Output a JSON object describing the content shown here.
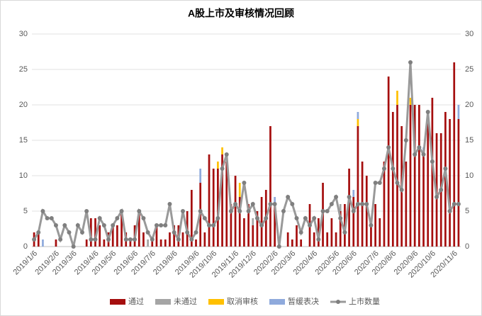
{
  "chart_data": {
    "type": "bar",
    "title": "A股上市及审核情况回顾",
    "categories": [
      "2019/1/6",
      null,
      null,
      null,
      null,
      "2019/2/6",
      null,
      null,
      null,
      "2019/3/6",
      null,
      null,
      null,
      null,
      "2019/4/6",
      null,
      null,
      null,
      "2019/5/6",
      null,
      null,
      null,
      null,
      "2019/6/6",
      null,
      null,
      null,
      "2019/7/6",
      null,
      null,
      null,
      null,
      "2019/8/6",
      null,
      null,
      null,
      null,
      "2019/9/6",
      null,
      null,
      null,
      "2019/10/6",
      null,
      null,
      null,
      null,
      "2019/11/6",
      null,
      null,
      null,
      "2019/12/6",
      null,
      null,
      null,
      null,
      "2020/2/6",
      null,
      null,
      null,
      "2020/3/6",
      null,
      null,
      null,
      null,
      "2020/4/6",
      null,
      null,
      null,
      null,
      "2020/5/6",
      null,
      null,
      null,
      "2020/6/6",
      null,
      null,
      null,
      null,
      "2020/7/6",
      null,
      null,
      null,
      "2020/8/6",
      null,
      null,
      null,
      null,
      "2020/9/6",
      null,
      null,
      null,
      "2020/10/6",
      null,
      null,
      null,
      null,
      "2020/11/6",
      null
    ],
    "series": [
      {
        "name": "通过",
        "color": "#a50e0e",
        "values": [
          2,
          2,
          0,
          0,
          0,
          1,
          0,
          0,
          0,
          0,
          0,
          0,
          1,
          4,
          4,
          3,
          1,
          2,
          3,
          3,
          5,
          2,
          1,
          3,
          5,
          2,
          0,
          1,
          3,
          1,
          1,
          2,
          3,
          3,
          2,
          5,
          8,
          1,
          9,
          2,
          13,
          11,
          11,
          13,
          12,
          6,
          10,
          7,
          4,
          6,
          3,
          5,
          7,
          8,
          17,
          6,
          0,
          0,
          2,
          1,
          3,
          1,
          0,
          6,
          2,
          4,
          9,
          2,
          4,
          2,
          5,
          6,
          11,
          7,
          17,
          12,
          10,
          3,
          6,
          4,
          12,
          24,
          19,
          20,
          17,
          12,
          20,
          20,
          20,
          13,
          19,
          21,
          16,
          16,
          19,
          18,
          26,
          18
        ]
      },
      {
        "name": "未通过",
        "color": "#a5a5a5",
        "values": [
          0,
          0,
          0,
          0,
          0,
          0,
          0,
          0,
          0,
          0,
          0,
          0,
          0,
          0,
          0,
          0,
          0,
          0,
          0,
          0,
          0,
          0,
          0,
          0,
          0,
          0,
          1,
          0,
          0,
          0,
          0,
          0,
          0,
          0,
          0,
          0,
          0,
          0,
          0,
          0,
          0,
          0,
          0,
          0,
          0,
          0,
          0,
          0,
          0,
          0,
          1,
          0,
          0,
          0,
          0,
          0,
          0,
          0,
          0,
          0,
          0,
          0,
          0,
          0,
          0,
          0,
          0,
          0,
          0,
          0,
          1,
          0,
          0,
          0,
          0,
          0,
          0,
          0,
          0,
          0,
          0,
          0,
          0,
          0,
          0,
          0,
          0,
          0,
          0,
          0,
          0,
          0,
          0,
          0,
          0,
          0,
          0,
          0
        ]
      },
      {
        "name": "取消审核",
        "color": "#ffc000",
        "values": [
          0,
          0,
          0,
          0,
          0,
          0,
          0,
          0,
          0,
          0,
          0,
          0,
          0,
          0,
          0,
          0,
          0,
          0,
          0,
          0,
          0,
          0,
          0,
          0,
          0,
          0,
          0,
          0,
          0,
          0,
          0,
          0,
          0,
          0,
          0,
          0,
          0,
          0,
          0,
          0,
          0,
          0,
          1,
          1,
          0,
          0,
          0,
          2,
          0,
          0,
          0,
          0,
          0,
          0,
          0,
          0,
          0,
          0,
          0,
          0,
          0,
          0,
          0,
          0,
          0,
          0,
          0,
          0,
          0,
          0,
          0,
          0,
          0,
          0,
          1,
          0,
          0,
          0,
          0,
          0,
          0,
          0,
          0,
          2,
          0,
          0,
          1,
          0,
          0,
          0,
          0,
          0,
          0,
          0,
          0,
          0,
          0,
          0
        ]
      },
      {
        "name": "暂缓表决",
        "color": "#8faadc",
        "values": [
          0,
          0,
          1,
          0,
          0,
          0,
          0,
          0,
          0,
          0,
          0,
          0,
          0,
          0,
          0,
          0,
          0,
          0,
          0,
          0,
          0,
          0,
          0,
          0,
          0,
          0,
          0,
          0,
          0,
          0,
          0,
          0,
          0,
          0,
          0,
          0,
          0,
          0,
          2,
          0,
          0,
          0,
          0,
          0,
          0,
          0,
          0,
          0,
          0,
          0,
          0,
          0,
          0,
          0,
          0,
          1,
          0,
          0,
          0,
          0,
          0,
          0,
          0,
          0,
          0,
          0,
          0,
          0,
          0,
          0,
          0,
          0,
          0,
          1,
          1,
          0,
          0,
          0,
          0,
          0,
          0,
          0,
          0,
          0,
          0,
          0,
          0,
          0,
          0,
          1,
          0,
          0,
          0,
          0,
          0,
          0,
          0,
          2
        ]
      },
      {
        "name": "上市数量",
        "color": "#999999",
        "type": "line",
        "axis": "y2",
        "values": [
          1,
          2,
          5,
          4,
          4,
          3,
          1,
          3,
          2,
          0,
          3,
          2,
          5,
          1,
          1,
          4,
          3,
          1,
          3,
          4,
          5,
          1,
          1,
          1,
          5,
          4,
          2,
          1,
          3,
          3,
          3,
          6,
          2,
          1,
          5,
          2,
          1,
          2,
          5,
          4,
          3,
          3,
          4,
          11,
          13,
          5,
          6,
          5,
          9,
          5,
          6,
          4,
          3,
          4,
          6,
          6,
          0,
          5,
          7,
          6,
          4,
          2,
          4,
          3,
          4,
          1,
          5,
          5,
          6,
          7,
          4,
          2,
          7,
          5,
          6,
          6,
          6,
          3,
          9,
          9,
          11,
          14,
          11,
          9,
          8,
          15,
          26,
          13,
          14,
          13,
          19,
          12,
          7,
          8,
          11,
          5,
          6,
          6
        ]
      }
    ],
    "ylim": [
      0,
      30
    ],
    "yticks": [
      0,
      5,
      10,
      15,
      20,
      25,
      30
    ],
    "y2lim": [
      0,
      30
    ],
    "y2ticks": [
      0,
      5,
      10,
      15,
      20,
      25,
      30
    ],
    "grid": true,
    "stacked": true,
    "legend": "bottom"
  }
}
